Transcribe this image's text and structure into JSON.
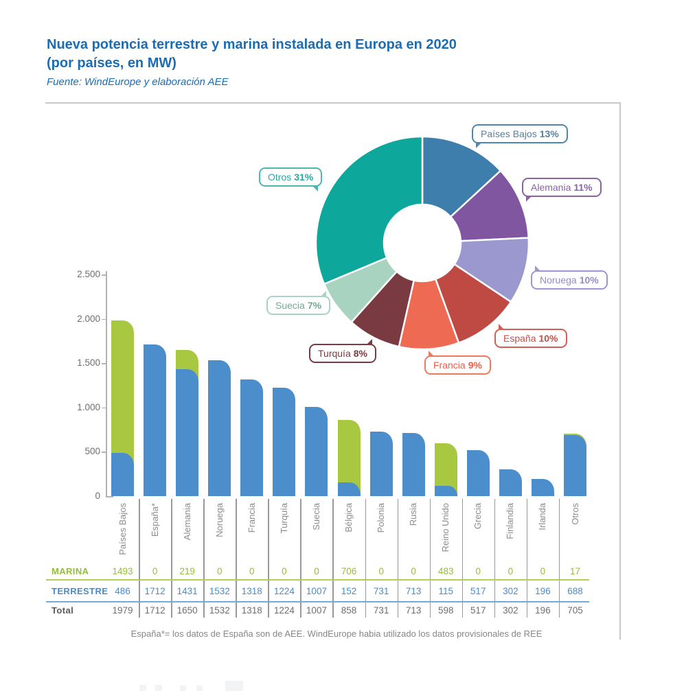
{
  "header": {
    "title_line1": "Nueva potencia terrestre y marina instalada en Europa en 2020",
    "title_line2": "(por países, en MW)",
    "source": "Fuente: WindEurope y elaboración AEE"
  },
  "footnote": "España*= los datos de España son de AEE. WindEurope habia utilizado los datos provisionales de REE",
  "chart_data": [
    {
      "type": "pie",
      "subtype": "donut",
      "title": "",
      "legend_position": "callout-bubbles",
      "segments": [
        {
          "name": "Países Bajos",
          "pct": 13,
          "color": "#3d7ead"
        },
        {
          "name": "Alemania",
          "pct": 11,
          "color": "#8156a0"
        },
        {
          "name": "Noruega",
          "pct": 10,
          "color": "#9b98d0"
        },
        {
          "name": "España",
          "pct": 10,
          "color": "#be4a43"
        },
        {
          "name": "Francia",
          "pct": 9,
          "color": "#ee6a52"
        },
        {
          "name": "Turquía",
          "pct": 8,
          "color": "#7a3a42"
        },
        {
          "name": "Suecia",
          "pct": 7,
          "color": "#a9d3c1"
        },
        {
          "name": "Otros",
          "pct": 31,
          "color": "#0ea79b"
        }
      ],
      "labels": [
        {
          "name": "Países Bajos",
          "pct_label": "13%",
          "x": 687,
          "y": 181,
          "tail": "bl",
          "border": "#4d87b2",
          "text": "#56809e"
        },
        {
          "name": "Alemania",
          "pct_label": "11%",
          "x": 760,
          "y": 259,
          "tail": "bl",
          "border": "#8a63a5",
          "text": "#8a63a5"
        },
        {
          "name": "Noruega",
          "pct_label": "10%",
          "x": 773,
          "y": 394,
          "tail": "tl",
          "border": "#9b98d0",
          "text": "#908dc8"
        },
        {
          "name": "España",
          "pct_label": "10%",
          "x": 720,
          "y": 479,
          "tail": "tl",
          "border": "#d25f55",
          "text": "#c25048"
        },
        {
          "name": "Francia",
          "pct_label": "9%",
          "x": 618,
          "y": 518,
          "tail": "tl",
          "border": "#ee7a60",
          "text": "#e8604a"
        },
        {
          "name": "Turquía",
          "pct_label": "8%",
          "x": 450,
          "y": 501,
          "tail": "tr",
          "border": "#7a3a42",
          "text": "#7a3a42"
        },
        {
          "name": "Suecia",
          "pct_label": "7%",
          "x": 388,
          "y": 431,
          "tail": "tr",
          "border": "#a9d3c1",
          "text": "#74a894"
        },
        {
          "name": "Otros",
          "pct_label": "31%",
          "x": 377,
          "y": 244,
          "tail": "br",
          "border": "#4cb8ad",
          "text": "#2ba89d"
        }
      ]
    },
    {
      "type": "bar",
      "stacked": true,
      "grid": false,
      "categories": [
        "Países Bajos",
        "España*",
        "Alemania",
        "Noruega",
        "Francia",
        "Turquía",
        "Suecia",
        "Bélgica",
        "Polonia",
        "Rusia",
        "Reino Unido",
        "Grecia",
        "Finlandia",
        "Irlanda",
        "Otros"
      ],
      "series": [
        {
          "name": "MARINA",
          "color": "#a9c841",
          "values": [
            1493,
            0,
            219,
            0,
            0,
            0,
            0,
            706,
            0,
            0,
            483,
            0,
            0,
            0,
            17
          ]
        },
        {
          "name": "TERRESTRE",
          "color": "#4c8dcb",
          "values": [
            486,
            1712,
            1431,
            1532,
            1318,
            1224,
            1007,
            152,
            731,
            713,
            115,
            517,
            302,
            196,
            688
          ]
        }
      ],
      "totals": [
        1979,
        1712,
        1650,
        1532,
        1318,
        1224,
        1007,
        858,
        731,
        713,
        598,
        517,
        302,
        196,
        705
      ],
      "ylim": [
        0,
        2500
      ],
      "yticks": [
        0,
        500,
        1000,
        1500,
        2000,
        2500
      ],
      "ytick_labels": [
        "0",
        "500",
        "1.000",
        "1.500",
        "2.000",
        "2.500"
      ]
    }
  ],
  "table": {
    "rows": [
      {
        "label": "MARINA",
        "label_color": "#94bc3d",
        "value_color": "#94bc3d",
        "line_color": "#b4cf56"
      },
      {
        "label": "TERRESTRE",
        "label_color": "#4a8bc9",
        "value_color": "#4a8bc9",
        "line_color": "#74a9dc"
      },
      {
        "label": "Total",
        "label_color": "#57585a",
        "value_color": "#6d6e71",
        "line_color": ""
      }
    ]
  }
}
